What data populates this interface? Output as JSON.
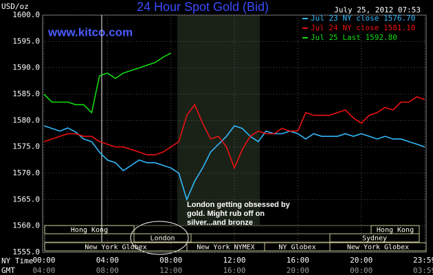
{
  "chart_data": {
    "type": "line",
    "title": "24 Hour Spot Gold (Bid)",
    "date": "July 25, 2012 07:53",
    "y_label": "USD/oz",
    "watermark": "www.kitco.com",
    "annotation": "London getting obsessed by gold. Might rub off on silver...and bronze",
    "x_label": "NY Time",
    "x2_label": "GMT",
    "x": [
      0,
      0.5,
      1,
      1.5,
      2,
      2.5,
      3,
      3.5,
      4,
      4.5,
      5,
      5.5,
      6,
      6.5,
      7,
      7.5,
      8,
      8.5,
      9,
      9.5,
      10,
      10.5,
      11,
      11.5,
      12,
      12.5,
      13,
      13.5,
      14,
      14.5,
      15,
      15.5,
      16,
      16.5,
      17,
      17.5,
      18,
      18.5,
      19,
      19.5,
      20,
      20.5,
      21,
      21.5,
      22,
      22.5,
      23,
      23.5,
      24
    ],
    "xlim": [
      0,
      24
    ],
    "xticks": [
      {
        "value": 0,
        "label": "00:00"
      },
      {
        "value": 4,
        "label": "04:00"
      },
      {
        "value": 8,
        "label": "08:00"
      },
      {
        "value": 12,
        "label": "12:00"
      },
      {
        "value": 16,
        "label": "16:00"
      },
      {
        "value": 20,
        "label": "20:00"
      },
      {
        "value": 23.98,
        "label": "23:59"
      }
    ],
    "x2ticks": [
      {
        "value": 0,
        "label": "04:00"
      },
      {
        "value": 4,
        "label": "08:00"
      },
      {
        "value": 8,
        "label": "12:00"
      },
      {
        "value": 12,
        "label": "16:00"
      },
      {
        "value": 16,
        "label": "20:00"
      },
      {
        "value": 20,
        "label": "00:00"
      },
      {
        "value": 23.98,
        "label": "03:59"
      }
    ],
    "ylim": [
      1555,
      1600
    ],
    "yticks": [
      {
        "value": 1555,
        "label": "1555.0"
      },
      {
        "value": 1560,
        "label": "1560.0"
      },
      {
        "value": 1565,
        "label": "1565.0"
      },
      {
        "value": 1570,
        "label": "1570.0"
      },
      {
        "value": 1575,
        "label": "1575.0"
      },
      {
        "value": 1580,
        "label": "1580.0"
      },
      {
        "value": 1585,
        "label": "1585.0"
      },
      {
        "value": 1590,
        "label": "1590.0"
      },
      {
        "value": 1595,
        "label": "1595.0"
      },
      {
        "value": 1600,
        "label": "1600.0"
      }
    ],
    "grid": true,
    "series": [
      {
        "name": "Jul 23 NY close 1576.70",
        "color": "#33bbff",
        "values": [
          1579,
          1578.5,
          1578,
          1578.6,
          1577.8,
          1576.5,
          1576,
          1574,
          1572.5,
          1572,
          1570.5,
          1571.5,
          1572.5,
          1572,
          1572,
          1571.5,
          1571,
          1570,
          1565,
          1568.5,
          1571,
          1574,
          1575.5,
          1577,
          1579,
          1578.5,
          1577,
          1576,
          1578,
          1577.5,
          1577.5,
          1578,
          1577.5,
          1576.5,
          1577.5,
          1577,
          1577,
          1577,
          1577.5,
          1577,
          1577.5,
          1577,
          1576.5,
          1577,
          1576.5,
          1576.5,
          1576,
          1575.5,
          1575
        ]
      },
      {
        "name": "Jul 24 NY close 1581.10",
        "color": "#ee1111",
        "values": [
          1576,
          1576.5,
          1577,
          1577.5,
          1577.5,
          1577,
          1577,
          1576,
          1575.5,
          1575,
          1575,
          1574.5,
          1574,
          1573.5,
          1573.5,
          1574,
          1575,
          1576,
          1581,
          1583,
          1579.5,
          1576.5,
          1577,
          1575,
          1571,
          1574.5,
          1577,
          1578,
          1577.5,
          1577.5,
          1578.5,
          1578,
          1578,
          1581.5,
          1581,
          1581,
          1581,
          1581.5,
          1582,
          1580.5,
          1579.5,
          1581,
          1581.5,
          1582.5,
          1582,
          1583.5,
          1583.5,
          1584.5,
          1584
        ]
      },
      {
        "name": "Jul 25 Last 1592.80",
        "color": "#11dd11",
        "values": [
          1585,
          1583.5,
          1583.5,
          1583.5,
          1583,
          1583,
          1581.5,
          1588.5,
          1589,
          1588,
          1589,
          1589.5,
          1590,
          1590.5,
          1591,
          1592,
          1592.8,
          null,
          null,
          null,
          null,
          null,
          null,
          null,
          null,
          null,
          null,
          null,
          null,
          null,
          null,
          null,
          null,
          null,
          null,
          null,
          null,
          null,
          null,
          null,
          null,
          null,
          null,
          null,
          null,
          null,
          null,
          null,
          null
        ]
      }
    ],
    "sessions": [
      "Hong Kong",
      "London",
      "New York Globex",
      "New York NYMEX",
      "NY Globex",
      "Sydney",
      "Hong Kong",
      "New York Globex"
    ]
  }
}
